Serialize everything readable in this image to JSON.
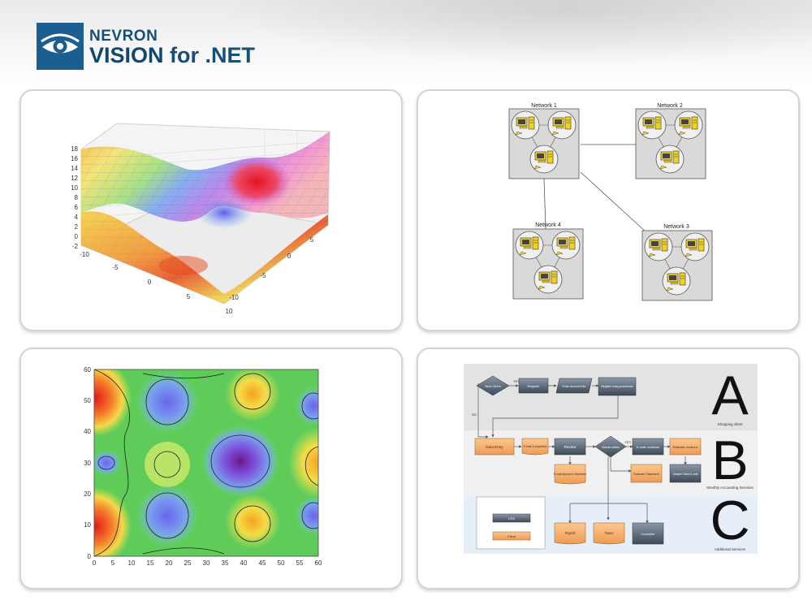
{
  "brand": {
    "name_line1": "NEVRON",
    "name_line2_bold": "VISION",
    "name_line2_rest": " for .NET",
    "logo_color": "#1b5f90"
  },
  "panels": {
    "surface_chart": {
      "z_ticks": [
        "18",
        "16",
        "14",
        "12",
        "10",
        "8",
        "6",
        "4",
        "2",
        "0",
        "-2"
      ],
      "x_ticks": [
        "-10",
        "-5",
        "0",
        "5",
        "10"
      ],
      "y_ticks": [
        "5",
        "0",
        "-5",
        "-10"
      ]
    },
    "network_diagram": {
      "networks": [
        "Network 1",
        "Network 2",
        "Network 3",
        "Network 4"
      ]
    },
    "contour_chart": {
      "y_ticks": [
        "60",
        "50",
        "40",
        "30",
        "20",
        "10",
        "0"
      ],
      "x_ticks": [
        "0",
        "5",
        "10",
        "15",
        "20",
        "25",
        "30",
        "35",
        "40",
        "45",
        "50",
        "55",
        "60"
      ]
    },
    "flowchart": {
      "lanes": [
        {
          "letter": "A",
          "caption": "Shopping client"
        },
        {
          "letter": "B",
          "caption": "Monthly Accounting Services"
        },
        {
          "letter": "C",
          "caption": "Additional Services"
        }
      ],
      "shapes": {
        "new_client": "New Client",
        "yes1": "YES",
        "register": "Register",
        "enter_account": "Enter account info",
        "register_entry": "Register entry procedures",
        "no1": "NO",
        "data_entry": "Data Entry",
        "email_completed": "E-mail Completed",
        "review": "Review",
        "needs_review": "Needs review",
        "yes2": "YES",
        "email_revisions": "E-mail revisions",
        "evaluate_revisions": "Evaluate revisions",
        "email_approved": "E-mail Approved Statement",
        "evaluate_statement": "Evaluate Statement",
        "answer_client_mail": "Answer Client E-mail",
        "legend_cpa": "CPA",
        "legend_client": "Client",
        "payroll": "Payroll",
        "taxes": "Taxes",
        "controller": "Controller"
      }
    }
  }
}
